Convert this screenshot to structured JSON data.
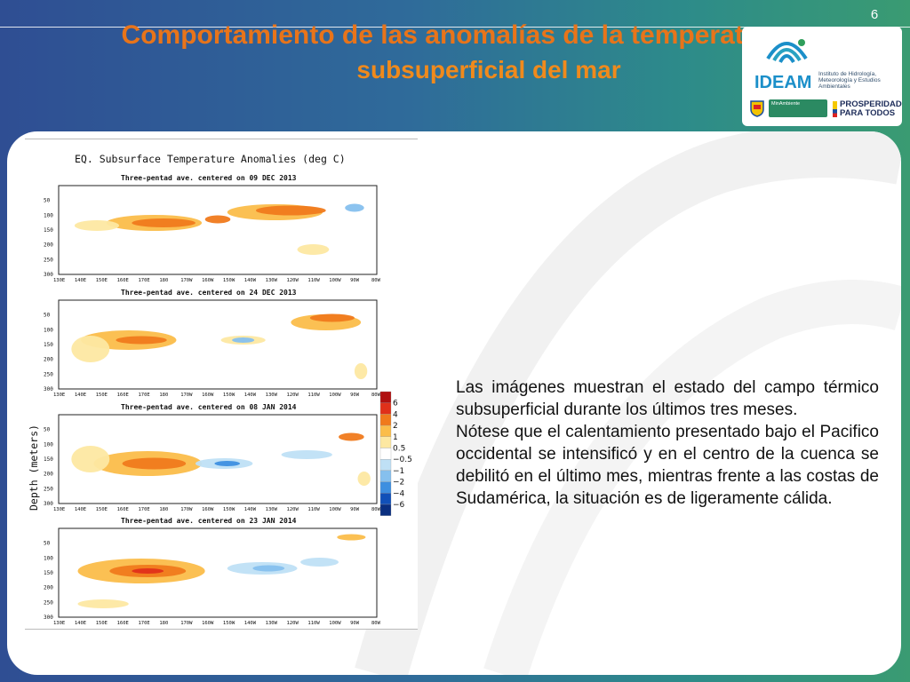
{
  "slide": {
    "number": "6",
    "title_line1": "Comportamiento de las anomalías de la temperatura",
    "title_line2": "subsuperficial del mar"
  },
  "logos": {
    "ideam_name": "IDEAM",
    "ideam_subtitle": "Instituto de Hidrología, Meteorología y Estudios Ambientales",
    "ministry": "MinAmbiente",
    "prosperidad": [
      "PROSPERIDAD",
      "PARA TODOS"
    ]
  },
  "figure": {
    "title": "EQ. Subsurface Temperature Anomalies (deg C)",
    "ylabel": "Depth (meters)",
    "panels": [
      {
        "title": "Three-pentad ave. centered on 09 DEC 2013"
      },
      {
        "title": "Three-pentad ave. centered on 24 DEC 2013"
      },
      {
        "title": "Three-pentad ave. centered on 08 JAN 2014"
      },
      {
        "title": "Three-pentad ave. centered on 23 JAN 2014"
      }
    ],
    "xticks": [
      "130E",
      "140E",
      "150E",
      "160E",
      "170E",
      "180",
      "170W",
      "160W",
      "150W",
      "140W",
      "130W",
      "120W",
      "110W",
      "100W",
      "90W",
      "80W"
    ],
    "yticks": [
      "50",
      "100",
      "150",
      "200",
      "250",
      "300"
    ],
    "colorbar": {
      "labels": [
        "6",
        "4",
        "2",
        "1",
        "0.5",
        "−0.5",
        "−1",
        "−2",
        "−4",
        "−6"
      ],
      "colors": [
        "#b01010",
        "#e0301a",
        "#f07a1c",
        "#fbbd4a",
        "#fde8a2",
        "#ffffff",
        "#bfe0f5",
        "#86c0ee",
        "#3e8fe0",
        "#1150b8",
        "#0a2f80"
      ]
    }
  },
  "description": {
    "p1": "Las imágenes muestran el estado del campo térmico subsuperficial durante los últimos tres meses.",
    "p2": "Nótese que el calentamiento presentado bajo el Pacifico occidental se intensificó y en el centro de la cuenca se debilitó en el último mes, mientras frente a las costas de Sudamérica, la situación es de ligeramente cálida."
  },
  "colors": {
    "title": "#e8741a",
    "background_left": "#2f4e93",
    "background_right": "#3a9b72"
  }
}
